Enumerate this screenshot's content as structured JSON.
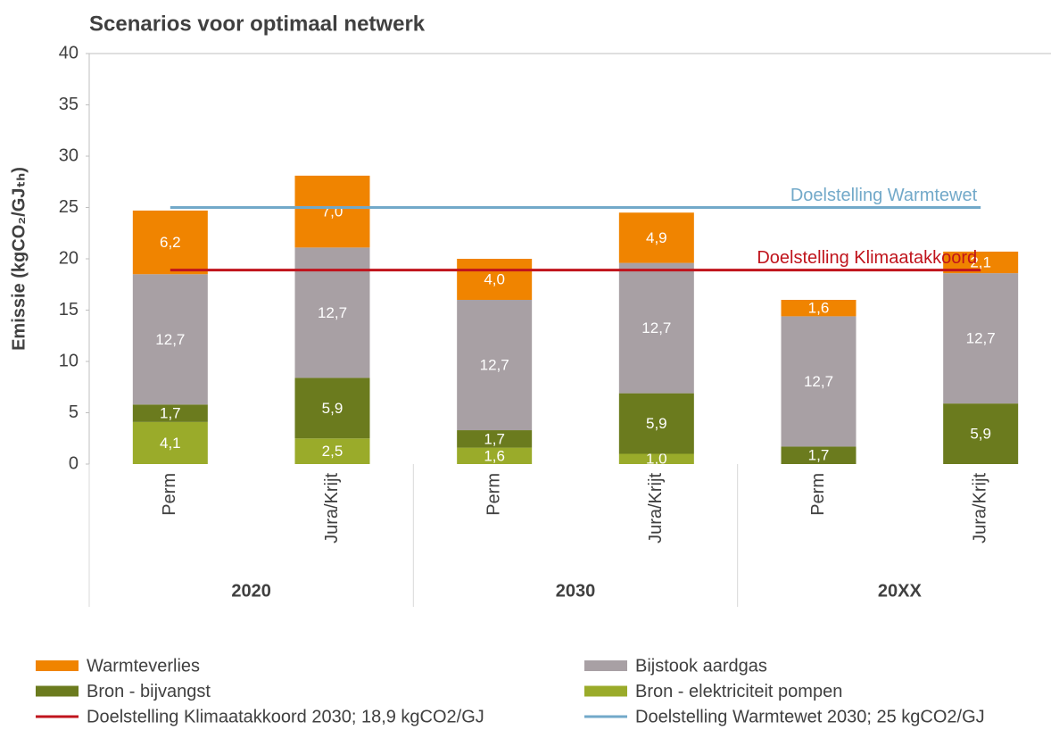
{
  "chart_data": {
    "type": "stacked_bar",
    "title": "Scenarios voor optimaal netwerk",
    "y_label": "Emissie (kgCO₂/GJₜₕ)",
    "categories": [
      "Perm",
      "Jura/Krijt",
      "Perm",
      "Jura/Krijt",
      "Perm",
      "Jura/Krijt"
    ],
    "groups": [
      "2020",
      "2030",
      "20XX"
    ],
    "series": [
      {
        "name": "Bron - elektriciteit pompen",
        "color": "#9aab2a",
        "values": [
          4.1,
          2.5,
          1.6,
          1.0,
          null,
          null
        ],
        "value_labels": [
          "4,1",
          "2,5",
          "1,6",
          "1,0",
          null,
          null
        ]
      },
      {
        "name": "Bron - bijvangst",
        "color": "#6b7b1e",
        "values": [
          1.7,
          5.9,
          1.7,
          5.9,
          1.7,
          5.9
        ],
        "value_labels": [
          "1,7",
          "5,9",
          "1,7",
          "5,9",
          "1,7",
          "5,9"
        ]
      },
      {
        "name": "Bijstook aardgas",
        "color": "#a8a0a4",
        "values": [
          12.7,
          12.7,
          12.7,
          12.7,
          12.7,
          12.7
        ],
        "value_labels": [
          "12,7",
          "12,7",
          "12,7",
          "12,7",
          "12,7",
          "12,7"
        ]
      },
      {
        "name": "Warmteverlies",
        "color": "#f08400",
        "values": [
          6.2,
          7.0,
          4.0,
          4.9,
          1.6,
          2.1
        ],
        "value_labels": [
          "6,2",
          "7,0",
          "4,0",
          "4,9",
          "1,6",
          "2,1"
        ]
      }
    ],
    "reference_lines": [
      {
        "name": "Doelstelling Klimaatakkoord 2030; 18,9 kgCO2/GJ",
        "label": "Doelstelling Klimaatakkoord",
        "value": 18.9,
        "color": "#c0141c"
      },
      {
        "name": "Doelstelling Warmtewet 2030; 25 kgCO2/GJ",
        "label": "Doelstelling Warmtewet",
        "value": 25,
        "color": "#72a9c9"
      }
    ],
    "ylim": [
      0,
      40
    ],
    "yticks": [
      0,
      5,
      10,
      15,
      20,
      25,
      30,
      35,
      40
    ],
    "grid": false
  }
}
